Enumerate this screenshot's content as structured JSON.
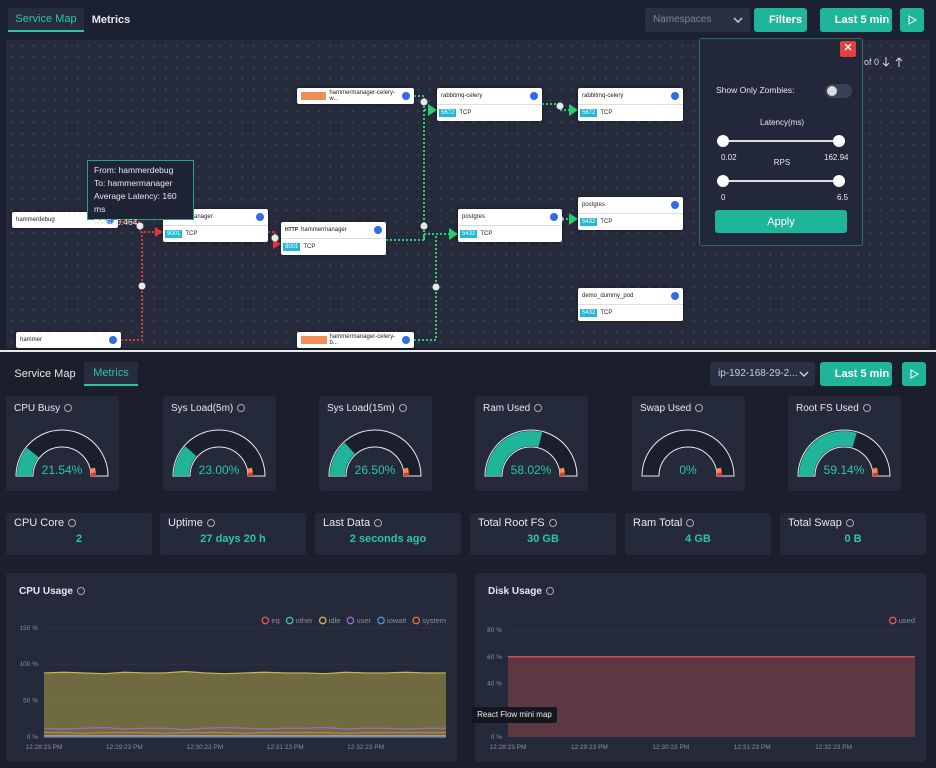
{
  "top": {
    "tabs": [
      "Service Map",
      "Metrics"
    ],
    "namespace_placeholder": "Namespaces",
    "filters": "Filters",
    "time_range": "Last 5 min",
    "search_count": "of 0"
  },
  "service_map": {
    "nodes": [
      {
        "name": "hammerdebug"
      },
      {
        "name": "hammermanager",
        "port": 9001,
        "protocol": "TCP"
      },
      {
        "name": "hammermanager",
        "badge": "HTTP",
        "port": 9001,
        "protocol": "TCP"
      },
      {
        "name": "hammermanager-celery-w..."
      },
      {
        "name": "rabbitmq-celery",
        "port": 5672,
        "protocol": "TCP"
      },
      {
        "name": "rabbitmq-celery",
        "port": 5672,
        "protocol": "TCP"
      },
      {
        "name": "postgres",
        "port": 5432,
        "protocol": "TCP"
      },
      {
        "name": "postgres",
        "port": 5432,
        "protocol": "TCP"
      },
      {
        "name": "demo_dummy_pod",
        "port": 5432,
        "protocol": "TCP"
      },
      {
        "name": "hammer"
      },
      {
        "name": "hammermanager-celery-b..."
      }
    ],
    "tooltip": [
      "From: hammerdebug",
      "To: hammermanager",
      "Average Latency: 160 ms",
      "RPS: 0.464"
    ]
  },
  "filters_panel": {
    "zombies": "Show Only Zombies:",
    "latency_title": "Latency(ms)",
    "latency_min": 0.02,
    "latency_max": 162.94,
    "rps_title": "RPS",
    "rps_min": 0,
    "rps_max": 6.5,
    "apply": "Apply"
  },
  "metrics_header": {
    "tabs": [
      "Service Map",
      "Metrics"
    ],
    "host": "ip-192-168-29-2...",
    "time_range": "Last 5 min"
  },
  "gauges": [
    {
      "title": "CPU Busy",
      "value": 21.54,
      "value_label": "21.54%"
    },
    {
      "title": "Sys Load(5m)",
      "value": 23.0,
      "value_label": "23.00%"
    },
    {
      "title": "Sys Load(15m)",
      "value": 26.5,
      "value_label": "26.50%"
    },
    {
      "title": "Ram Used",
      "value": 58.02,
      "value_label": "58.02%"
    },
    {
      "title": "Swap Used",
      "value": 0,
      "value_label": "0%"
    },
    {
      "title": "Root FS Used",
      "value": 59.14,
      "value_label": "59.14%"
    }
  ],
  "stats": [
    {
      "title": "CPU Core",
      "value": 2
    },
    {
      "title": "Uptime",
      "value": "27 days 20 h"
    },
    {
      "title": "Last Data",
      "value": "2 seconds ago"
    },
    {
      "title": "Total Root FS",
      "value": "30 GB"
    },
    {
      "title": "Ram Total",
      "value": "4 GB"
    },
    {
      "title": "Total Swap",
      "value": "0 B"
    }
  ],
  "cpu_usage": {
    "type": "line",
    "title": "CPU Usage",
    "xticks": [
      "12:28:23 PM",
      "12:29:23 PM",
      "12:30:23 PM",
      "12:31:23 PM",
      "12:32:23 PM"
    ],
    "ylim": [
      0,
      158
    ],
    "yticks": [
      {
        "value": 0,
        "label": "0 %"
      },
      {
        "value": 50,
        "label": "50 %"
      },
      {
        "value": 100,
        "label": "100 %"
      },
      {
        "value": 150,
        "label": "150 %"
      }
    ],
    "series": [
      {
        "name": "irq",
        "color": "#e05a5a",
        "values": [
          0,
          0,
          0,
          0,
          0,
          0,
          0,
          0,
          0,
          0,
          0,
          0,
          0,
          0,
          0,
          0,
          0,
          0,
          0,
          0,
          0
        ]
      },
      {
        "name": "other",
        "color": "#3fbf9f",
        "values": [
          2,
          2,
          2,
          2,
          2,
          2,
          2,
          2,
          2,
          2,
          2,
          2,
          2,
          2,
          2,
          2,
          2,
          2,
          2,
          2,
          2
        ]
      },
      {
        "name": "idle",
        "color": "#c9b94a",
        "values": [
          88,
          89,
          88,
          87,
          89,
          88,
          88,
          90,
          88,
          87,
          88,
          89,
          88,
          88,
          87,
          89,
          88,
          88,
          89,
          88,
          88
        ]
      },
      {
        "name": "user",
        "color": "#9b6bc9",
        "values": [
          12,
          11,
          12,
          13,
          11,
          12,
          12,
          10,
          12,
          13,
          12,
          11,
          12,
          12,
          13,
          11,
          12,
          12,
          11,
          12,
          12
        ]
      },
      {
        "name": "iowait",
        "color": "#3a9fd8",
        "values": [
          1,
          1,
          1,
          1,
          1,
          1,
          1,
          1,
          1,
          1,
          1,
          1,
          1,
          1,
          1,
          1,
          1,
          1,
          1,
          1,
          1
        ]
      },
      {
        "name": "system",
        "color": "#e0704a",
        "values": [
          6,
          6,
          5,
          6,
          6,
          6,
          5,
          6,
          6,
          6,
          5,
          6,
          6,
          6,
          6,
          5,
          6,
          6,
          6,
          6,
          6
        ]
      }
    ]
  },
  "disk_usage": {
    "type": "area",
    "title": "Disk Usage",
    "xticks": [
      "12:28:23 PM",
      "12:29:23 PM",
      "12:30:23 PM",
      "12:31:23 PM",
      "12:32:23 PM"
    ],
    "ylim": [
      0,
      86
    ],
    "yticks": [
      {
        "value": 0,
        "label": "0 %"
      },
      {
        "value": 20,
        "label": "20 %"
      },
      {
        "value": 40,
        "label": "40 %"
      },
      {
        "value": 60,
        "label": "60 %"
      },
      {
        "value": 80,
        "label": "80 %"
      }
    ],
    "series": [
      {
        "name": "used",
        "color": "#e05a5a",
        "values": [
          60,
          60,
          60,
          60,
          60,
          60,
          60,
          60,
          60,
          60,
          60,
          60,
          60,
          60,
          60,
          60,
          60,
          60,
          60,
          60,
          60
        ]
      }
    ]
  },
  "minimap_tooltip": "React Flow mini map"
}
